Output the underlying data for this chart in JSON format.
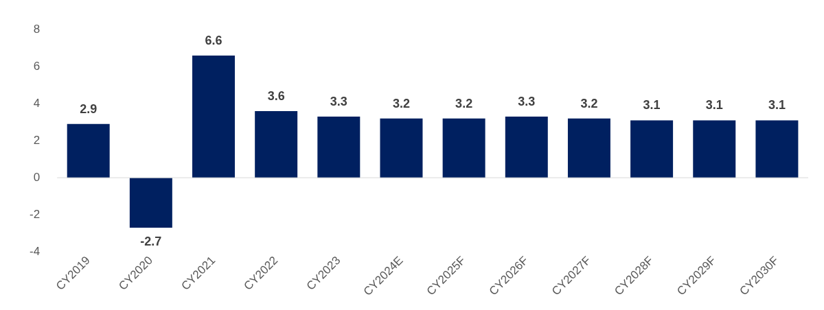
{
  "chart_data": {
    "type": "bar",
    "categories": [
      "CY2019",
      "CY2020",
      "CY2021",
      "CY2022",
      "CY2023",
      "CY2024E",
      "CY2025F",
      "CY2026F",
      "CY2027F",
      "CY2028F",
      "CY2029F",
      "CY2030F"
    ],
    "values": [
      2.9,
      -2.7,
      6.6,
      3.6,
      3.3,
      3.2,
      3.2,
      3.3,
      3.2,
      3.1,
      3.1,
      3.1
    ],
    "color": "#002060",
    "ylim": [
      -4,
      8
    ],
    "yticks": [
      -4,
      -2,
      0,
      2,
      4,
      6,
      8
    ],
    "data_labels": true
  }
}
